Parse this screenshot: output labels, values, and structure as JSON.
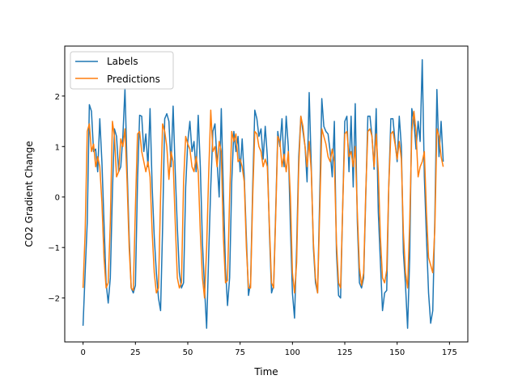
{
  "chart_data": {
    "type": "line",
    "title": "",
    "xlabel": "Time",
    "ylabel": "CO2 Gradient Change",
    "xlim": [
      -8.75,
      183.75
    ],
    "ylim": [
      -2.87,
      2.99
    ],
    "xticks": [
      0,
      25,
      50,
      75,
      100,
      125,
      150,
      175
    ],
    "yticks": [
      -2,
      -1,
      0,
      1,
      2
    ],
    "grid": false,
    "legend": "top-left",
    "series": [
      {
        "name": "Labels",
        "color": "#1f77b4",
        "values": [
          -2.55,
          -1.5,
          -0.5,
          1.83,
          1.7,
          0.9,
          0.95,
          0.5,
          1.55,
          0.7,
          -0.5,
          -1.7,
          -2.1,
          -1.6,
          0.1,
          1.35,
          1.2,
          0.5,
          0.6,
          1.2,
          2.15,
          0.6,
          -0.8,
          -1.8,
          -1.9,
          -1.75,
          0.3,
          1.62,
          1.6,
          0.9,
          1.25,
          0.6,
          1.75,
          0.2,
          -0.8,
          -1.5,
          -2.0,
          -2.25,
          -0.6,
          1.55,
          1.65,
          1.5,
          0.6,
          1.8,
          0.5,
          -0.6,
          -1.5,
          -1.8,
          -1.7,
          0.2,
          1.1,
          1.5,
          0.9,
          1.1,
          0.5,
          1.62,
          0.6,
          -0.9,
          -1.8,
          -2.6,
          -1.1,
          0.2,
          1.3,
          1.45,
          0.7,
          0.0,
          1.75,
          0.1,
          -1.4,
          -2.15,
          -1.6,
          0.3,
          1.3,
          0.9,
          1.2,
          0.5,
          1.15,
          0.4,
          -0.8,
          -1.95,
          -1.7,
          0.2,
          1.72,
          1.55,
          1.2,
          1.35,
          0.75,
          1.4,
          0.8,
          -0.7,
          -1.9,
          -1.75,
          -0.3,
          1.3,
          1.0,
          1.55,
          0.6,
          1.6,
          1.0,
          -0.6,
          -1.9,
          -2.4,
          -1.0,
          0.8,
          1.6,
          1.3,
          1.0,
          0.3,
          2.07,
          0.6,
          -1.0,
          -1.7,
          -1.9,
          0.0,
          1.95,
          1.4,
          1.3,
          1.25,
          0.9,
          0.4,
          1.5,
          -1.1,
          -1.95,
          -2.0,
          -0.2,
          1.5,
          1.6,
          0.5,
          1.6,
          0.2,
          1.85,
          -0.5,
          -1.7,
          -1.8,
          -1.6,
          0.0,
          1.6,
          1.6,
          1.2,
          0.55,
          1.75,
          -0.3,
          -1.3,
          -2.25,
          -1.9,
          -1.85,
          0.2,
          1.55,
          1.55,
          1.1,
          0.7,
          1.6,
          1.0,
          -1.1,
          -1.75,
          -2.6,
          -1.2,
          1.75,
          1.5,
          0.95,
          1.5,
          1.1,
          2.72,
          0.4,
          -0.8,
          -1.9,
          -2.5,
          -2.25,
          -0.4,
          2.13,
          0.8,
          1.5,
          0.7
        ]
      },
      {
        "name": "Predictions",
        "color": "#ff7f0e",
        "values": [
          -1.8,
          -0.7,
          1.3,
          1.45,
          0.9,
          1.05,
          0.6,
          0.8,
          0.6,
          -0.1,
          -1.2,
          -1.8,
          -1.7,
          -0.5,
          1.5,
          1.2,
          0.4,
          0.5,
          1.15,
          1.0,
          1.35,
          0.3,
          -1.0,
          -1.8,
          -1.85,
          -0.2,
          1.25,
          1.3,
          0.9,
          0.7,
          0.5,
          0.7,
          0.4,
          -0.7,
          -1.5,
          -1.9,
          -1.8,
          0.0,
          1.45,
          1.3,
          1.0,
          0.35,
          0.9,
          0.7,
          -0.5,
          -1.6,
          -1.8,
          -1.7,
          0.3,
          1.2,
          1.05,
          0.95,
          0.6,
          0.5,
          0.8,
          0.5,
          -0.7,
          -1.6,
          -2.0,
          -1.0,
          0.5,
          1.72,
          0.9,
          1.0,
          0.6,
          1.1,
          0.9,
          -0.8,
          -1.7,
          -1.65,
          0.0,
          1.3,
          1.1,
          1.25,
          0.7,
          0.75,
          0.6,
          0.3,
          -1.0,
          -1.8,
          -1.8,
          0.0,
          1.3,
          1.25,
          1.0,
          0.9,
          0.6,
          0.75,
          0.6,
          -0.6,
          -1.7,
          -1.8,
          -0.4,
          1.2,
          1.1,
          0.6,
          0.85,
          0.5,
          0.9,
          0.0,
          -1.5,
          -1.9,
          -1.3,
          0.6,
          1.6,
          1.4,
          1.0,
          0.6,
          1.1,
          0.5,
          -0.9,
          -1.6,
          -1.9,
          -0.3,
          1.35,
          1.2,
          1.05,
          0.8,
          0.7,
          0.95,
          0.7,
          -0.9,
          -1.7,
          -1.8,
          -0.2,
          1.25,
          1.3,
          0.8,
          0.9,
          0.6,
          1.0,
          -0.3,
          -1.4,
          -1.75,
          -1.5,
          0.1,
          1.3,
          1.35,
          1.2,
          0.6,
          1.25,
          0.5,
          -0.8,
          -1.6,
          -1.7,
          -1.45,
          0.2,
          1.25,
          1.3,
          1.05,
          0.75,
          1.1,
          0.75,
          -0.7,
          -1.5,
          -1.8,
          -0.5,
          1.3,
          1.7,
          1.3,
          0.4,
          0.6,
          0.7,
          0.9,
          -0.3,
          -1.2,
          -1.35,
          -1.5,
          -0.6,
          1.35,
          1.2,
          0.8,
          0.6
        ]
      }
    ]
  }
}
